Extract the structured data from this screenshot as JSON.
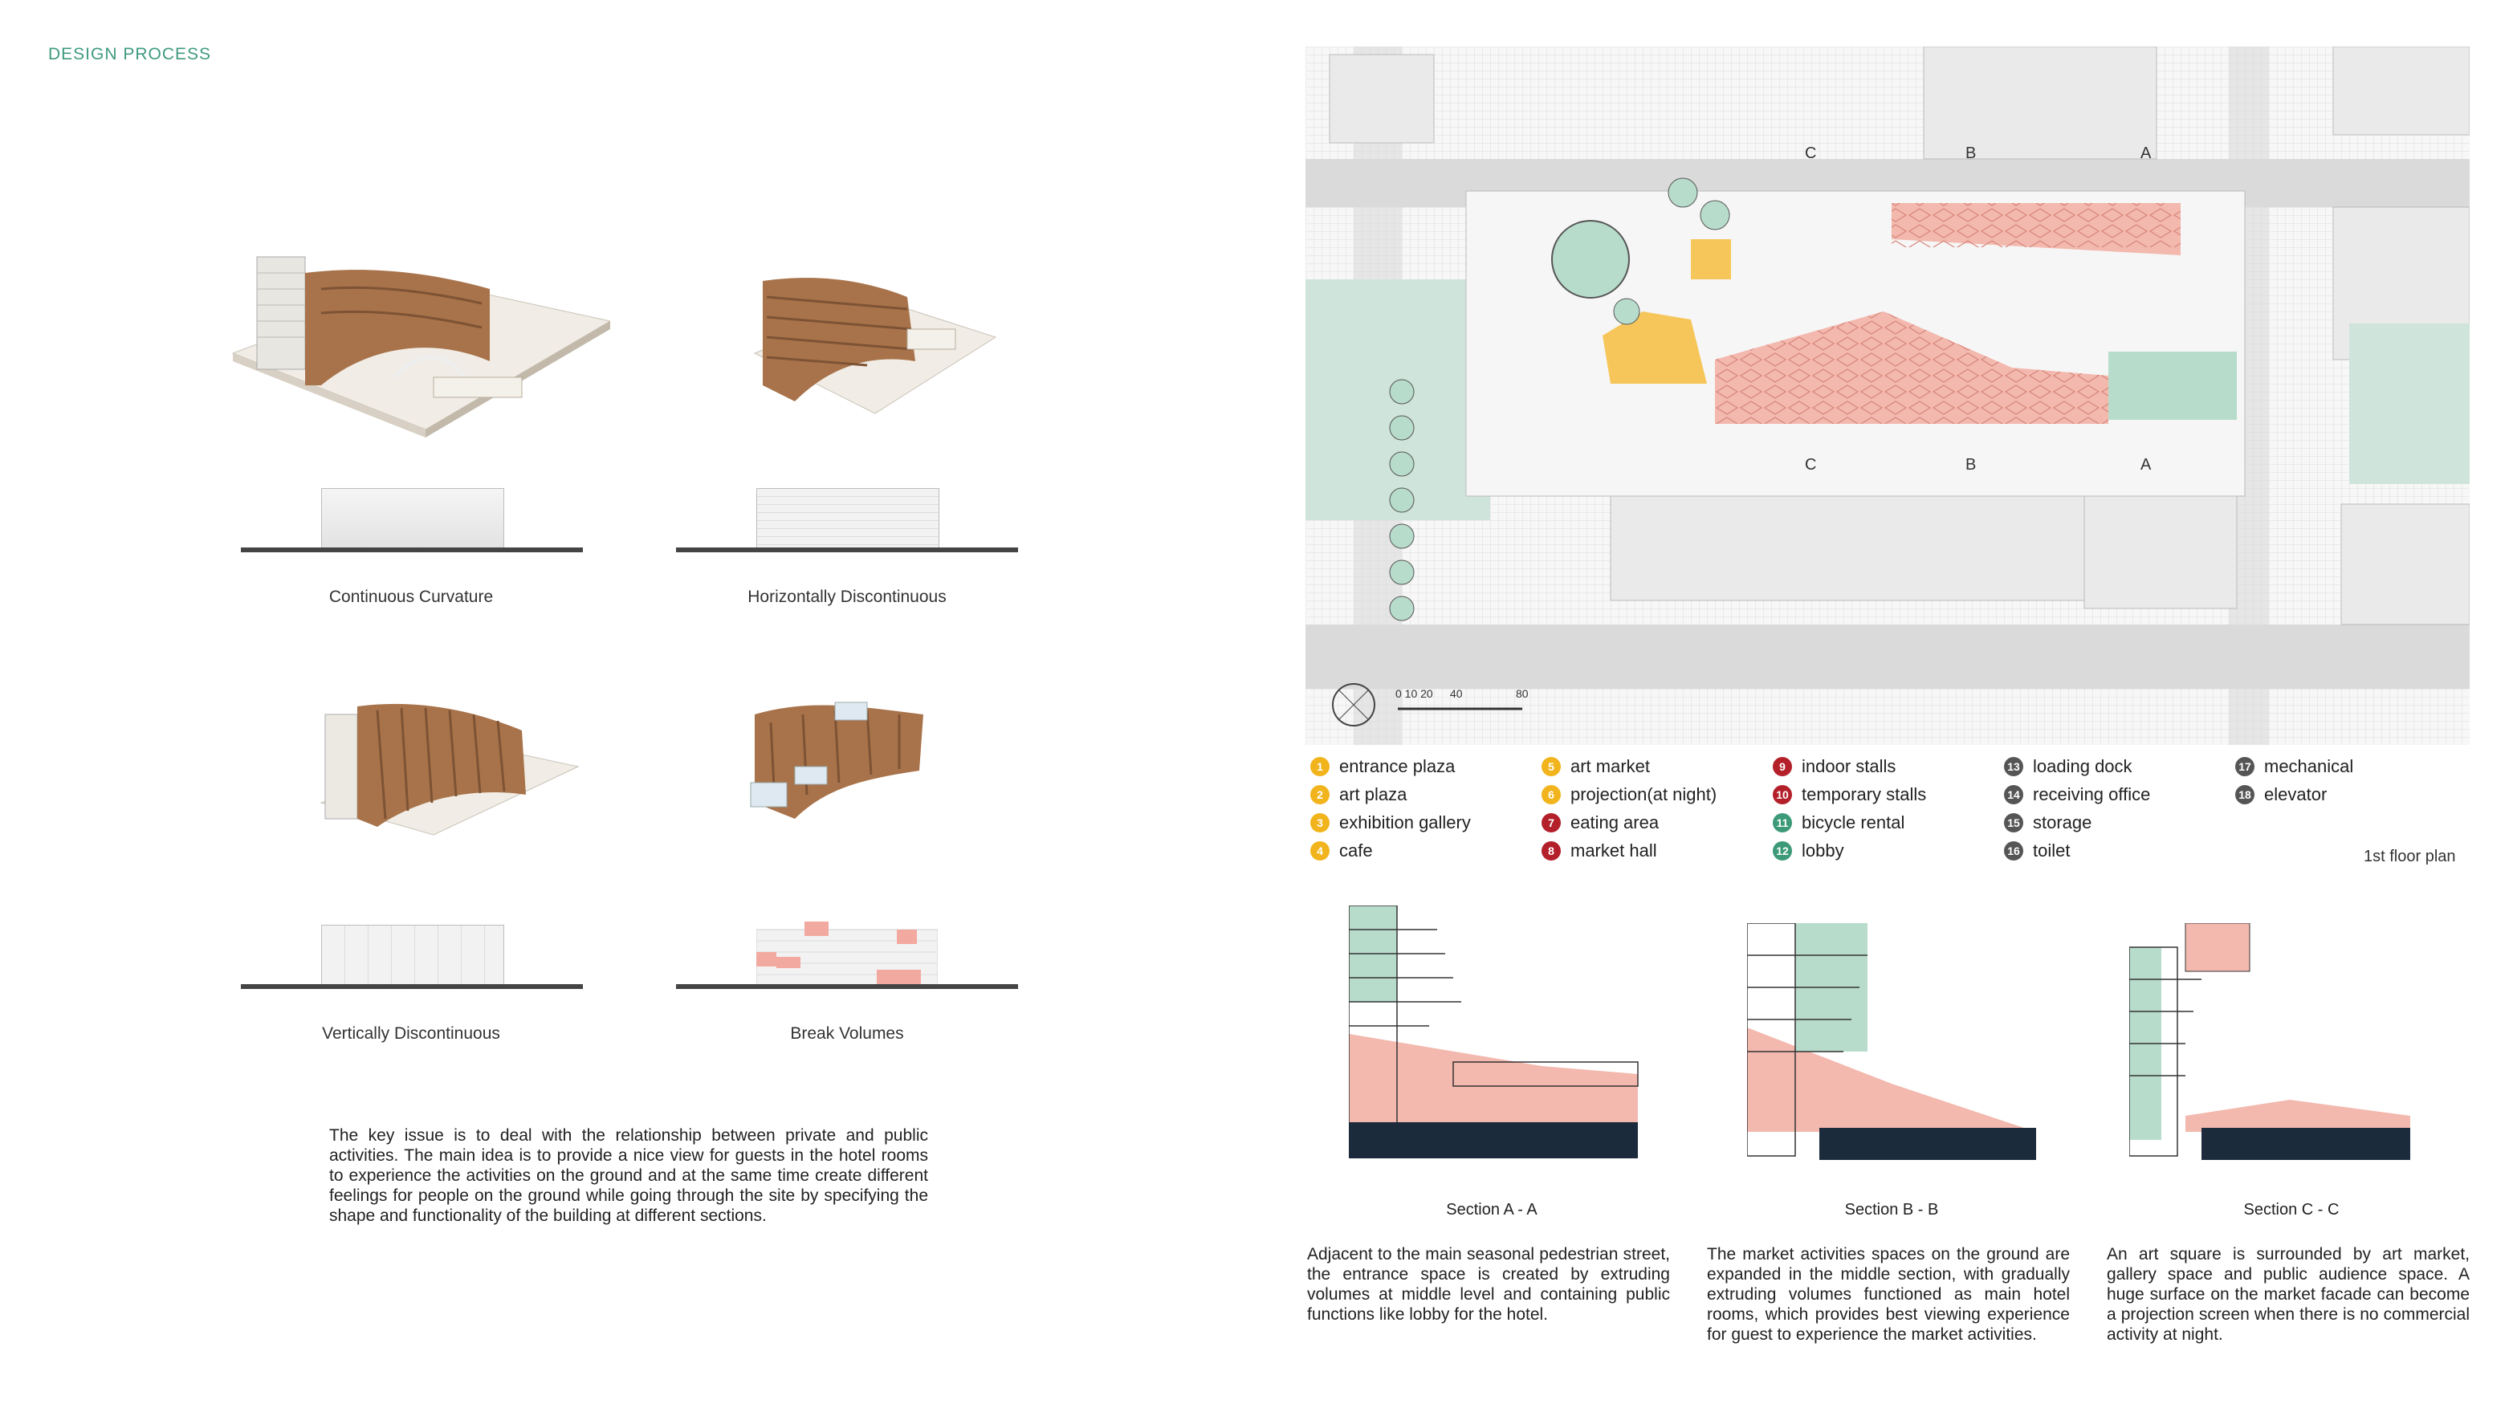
{
  "header": {
    "title": "DESIGN PROCESS"
  },
  "studies": [
    {
      "label": "Continuous Curvature"
    },
    {
      "label": "Horizontally Discontinuous"
    },
    {
      "label": "Vertically Discontinuous"
    },
    {
      "label": "Break Volumes"
    }
  ],
  "description": "The key issue is to deal with the relationship between private and public activities. The main idea is to provide a nice view for guests in the hotel rooms to experience the activities on the ground and at the same time create different feelings for people on the ground while going through the site by specifying the shape and functionality of the building at different sections.",
  "plan": {
    "title": "1st floor plan",
    "scale_labels": [
      "0 10 20",
      "40",
      "80"
    ],
    "section_marks": [
      "C",
      "B",
      "A"
    ],
    "legend": [
      {
        "num": "1",
        "label": "entrance plaza",
        "color": "#f2b41c"
      },
      {
        "num": "2",
        "label": "art plaza",
        "color": "#f2b41c"
      },
      {
        "num": "3",
        "label": "exhibition gallery",
        "color": "#f2b41c"
      },
      {
        "num": "4",
        "label": "cafe",
        "color": "#f2b41c"
      },
      {
        "num": "5",
        "label": "art market",
        "color": "#f2b41c"
      },
      {
        "num": "6",
        "label": "projection(at night)",
        "color": "#f2b41c"
      },
      {
        "num": "7",
        "label": "eating area",
        "color": "#b3202a"
      },
      {
        "num": "8",
        "label": "market hall",
        "color": "#b3202a"
      },
      {
        "num": "9",
        "label": "indoor stalls",
        "color": "#b3202a"
      },
      {
        "num": "10",
        "label": "temporary stalls",
        "color": "#b3202a"
      },
      {
        "num": "11",
        "label": "bicycle rental",
        "color": "#3c9a78"
      },
      {
        "num": "12",
        "label": "lobby",
        "color": "#3c9a78"
      },
      {
        "num": "13",
        "label": "loading dock",
        "color": "#555555"
      },
      {
        "num": "14",
        "label": "receiving office",
        "color": "#555555"
      },
      {
        "num": "15",
        "label": "storage",
        "color": "#555555"
      },
      {
        "num": "16",
        "label": "toilet",
        "color": "#555555"
      },
      {
        "num": "17",
        "label": "mechanical",
        "color": "#555555"
      },
      {
        "num": "18",
        "label": "elevator",
        "color": "#555555"
      }
    ]
  },
  "sections": [
    {
      "title": "Section A - A",
      "text": "Adjacent to the main seasonal pedestrian street, the entrance space is created by extruding volumes at middle level and containing public functions like lobby for the hotel."
    },
    {
      "title": "Section B - B",
      "text": "The market activities spaces on the ground are expanded in the middle section, with gradually extruding volumes functioned as main hotel rooms, which provides best viewing experience for guest to experience the market activities."
    },
    {
      "title": "Section C - C",
      "text": "An art square is surrounded by art market, gallery space and public audience space. A huge surface on the market facade can become a projection screen when there is no commercial activity at night."
    }
  ],
  "colors": {
    "accent": "#3f9a7f",
    "pink": "#f2b3aa",
    "mint": "#b8dccc",
    "navy": "#1c2b3c",
    "yellow": "#f2b41c",
    "red": "#b3202a"
  }
}
